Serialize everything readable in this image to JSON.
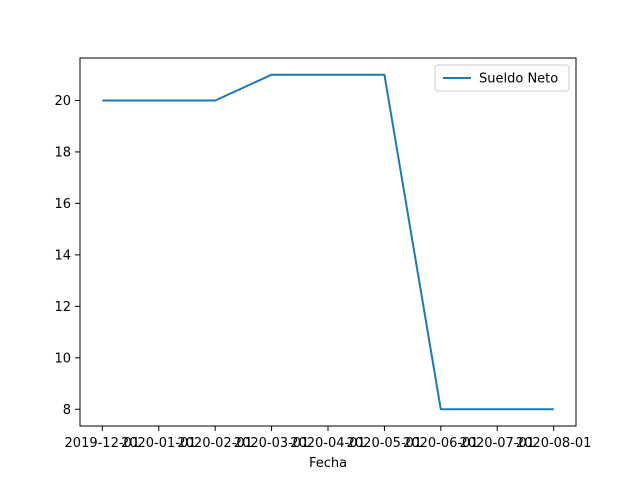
{
  "chart_data": {
    "type": "line",
    "title": "",
    "xlabel": "Fecha",
    "ylabel": "",
    "x": [
      "2019-12-01",
      "2020-01-01",
      "2020-02-01",
      "2020-03-01",
      "2020-04-01",
      "2020-05-01",
      "2020-06-01",
      "2020-07-01",
      "2020-08-01"
    ],
    "series": [
      {
        "name": "Sueldo Neto",
        "values": [
          20,
          20,
          20,
          21,
          21,
          21,
          8,
          8,
          8
        ],
        "color": "#1f77b4"
      }
    ],
    "ylim": [
      7.35,
      21.65
    ],
    "yticks": [
      8,
      10,
      12,
      14,
      16,
      18,
      20
    ],
    "grid": false,
    "legend_position": "top-right"
  }
}
